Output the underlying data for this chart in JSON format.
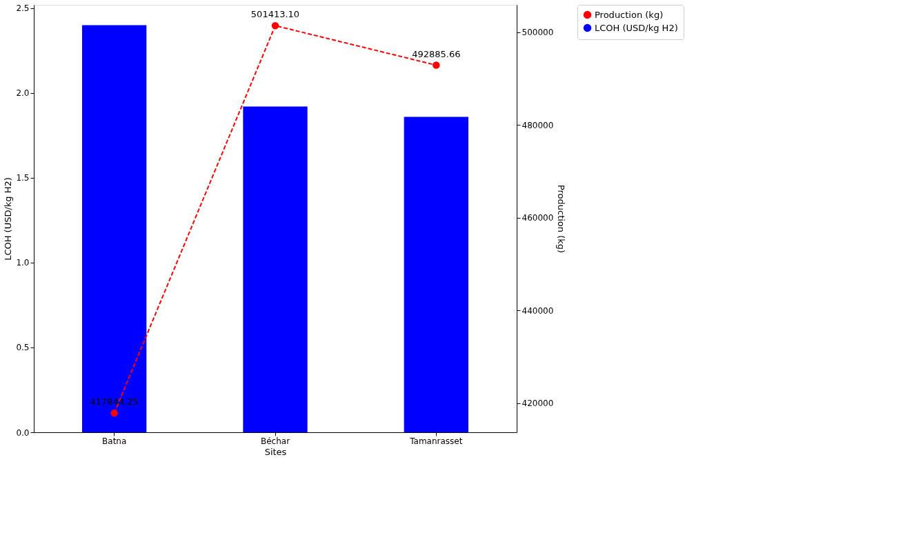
{
  "chart_data": {
    "type": "bar",
    "xlabel": "Sites",
    "ylabel": "LCOH (USD/kg H2)",
    "y2label": "Production (kg)",
    "categories": [
      "Batna",
      "Béchar",
      "Tamanrasset"
    ],
    "ylim": [
      0,
      2.52
    ],
    "yticks": [
      {
        "value": 0,
        "label": "0.0"
      },
      {
        "value": 0.5,
        "label": "0.5"
      },
      {
        "value": 1,
        "label": "1.0"
      },
      {
        "value": 1.5,
        "label": "1.5"
      },
      {
        "value": 2,
        "label": "2.0"
      },
      {
        "value": 2.5,
        "label": "2.5"
      }
    ],
    "y2lim": [
      413700,
      505900
    ],
    "y2ticks": [
      420000,
      440000,
      460000,
      480000,
      500000
    ],
    "grid": false,
    "legend": "top right",
    "series": [
      {
        "name": "Production (kg)",
        "type": "line",
        "axis": "y2",
        "color": "#ff0000",
        "values": [
          417844.25,
          501413.1,
          492885.66
        ],
        "value_labels": [
          "417844.25",
          "501413.10",
          "492885.66"
        ],
        "marker": "circle",
        "line_style": "dashed"
      },
      {
        "name": "LCOH (USD/kg H2)",
        "color": "#0000ff",
        "values": [
          2.4,
          1.92,
          1.86
        ]
      }
    ]
  }
}
